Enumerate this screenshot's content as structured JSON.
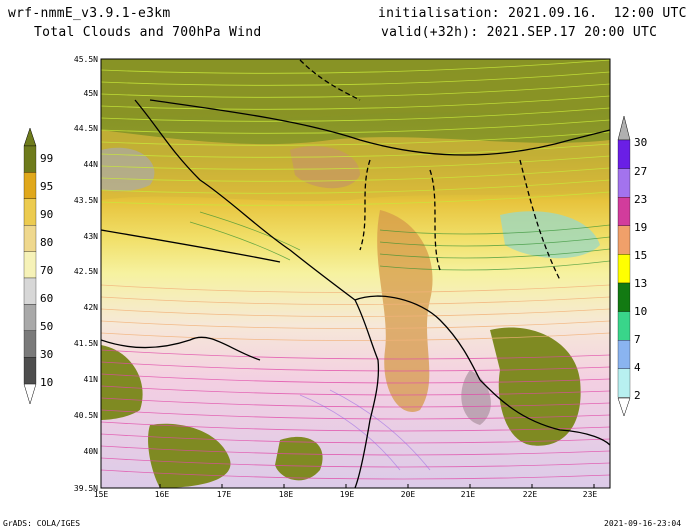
{
  "header": {
    "model": "wrf-nmmE_v3.9.1-e3km",
    "subtitle": "Total Clouds and 700hPa Wind",
    "init": "initialisation: 2021.09.16.  12:00 UTC",
    "valid": "valid(+32h): 2021.SEP.17 20:00 UTC"
  },
  "map": {
    "lat_labels": [
      "45.5N",
      "45N",
      "44.5N",
      "44N",
      "43.5N",
      "43N",
      "42.5N",
      "42N",
      "41.5N",
      "41N",
      "40.5N",
      "40N",
      "39.5N"
    ],
    "lon_labels": [
      "15E",
      "16E",
      "17E",
      "18E",
      "19E",
      "20E",
      "21E",
      "22E",
      "23E"
    ]
  },
  "legend_clouds": {
    "labels": [
      "99",
      "95",
      "90",
      "80",
      "70",
      "60",
      "50",
      "30",
      "10"
    ],
    "colors": [
      "#6e7b1c",
      "#e0a81c",
      "#eccb50",
      "#efd88e",
      "#f6f2b8",
      "#d7d7d7",
      "#a9a9a9",
      "#7a7a7a",
      "#4e4e4e"
    ]
  },
  "legend_wind": {
    "labels": [
      "30",
      "27",
      "23",
      "19",
      "15",
      "13",
      "10",
      "7",
      "4",
      "2"
    ],
    "colors": [
      "#6a1fe6",
      "#a373ee",
      "#d23c9c",
      "#f0a06a",
      "#ffff00",
      "#127a12",
      "#39d58a",
      "#8ab4f0",
      "#b8f0f0"
    ]
  },
  "footer": {
    "left": "GrADS: COLA/IGES",
    "right": "2021-09-16-23:04"
  }
}
